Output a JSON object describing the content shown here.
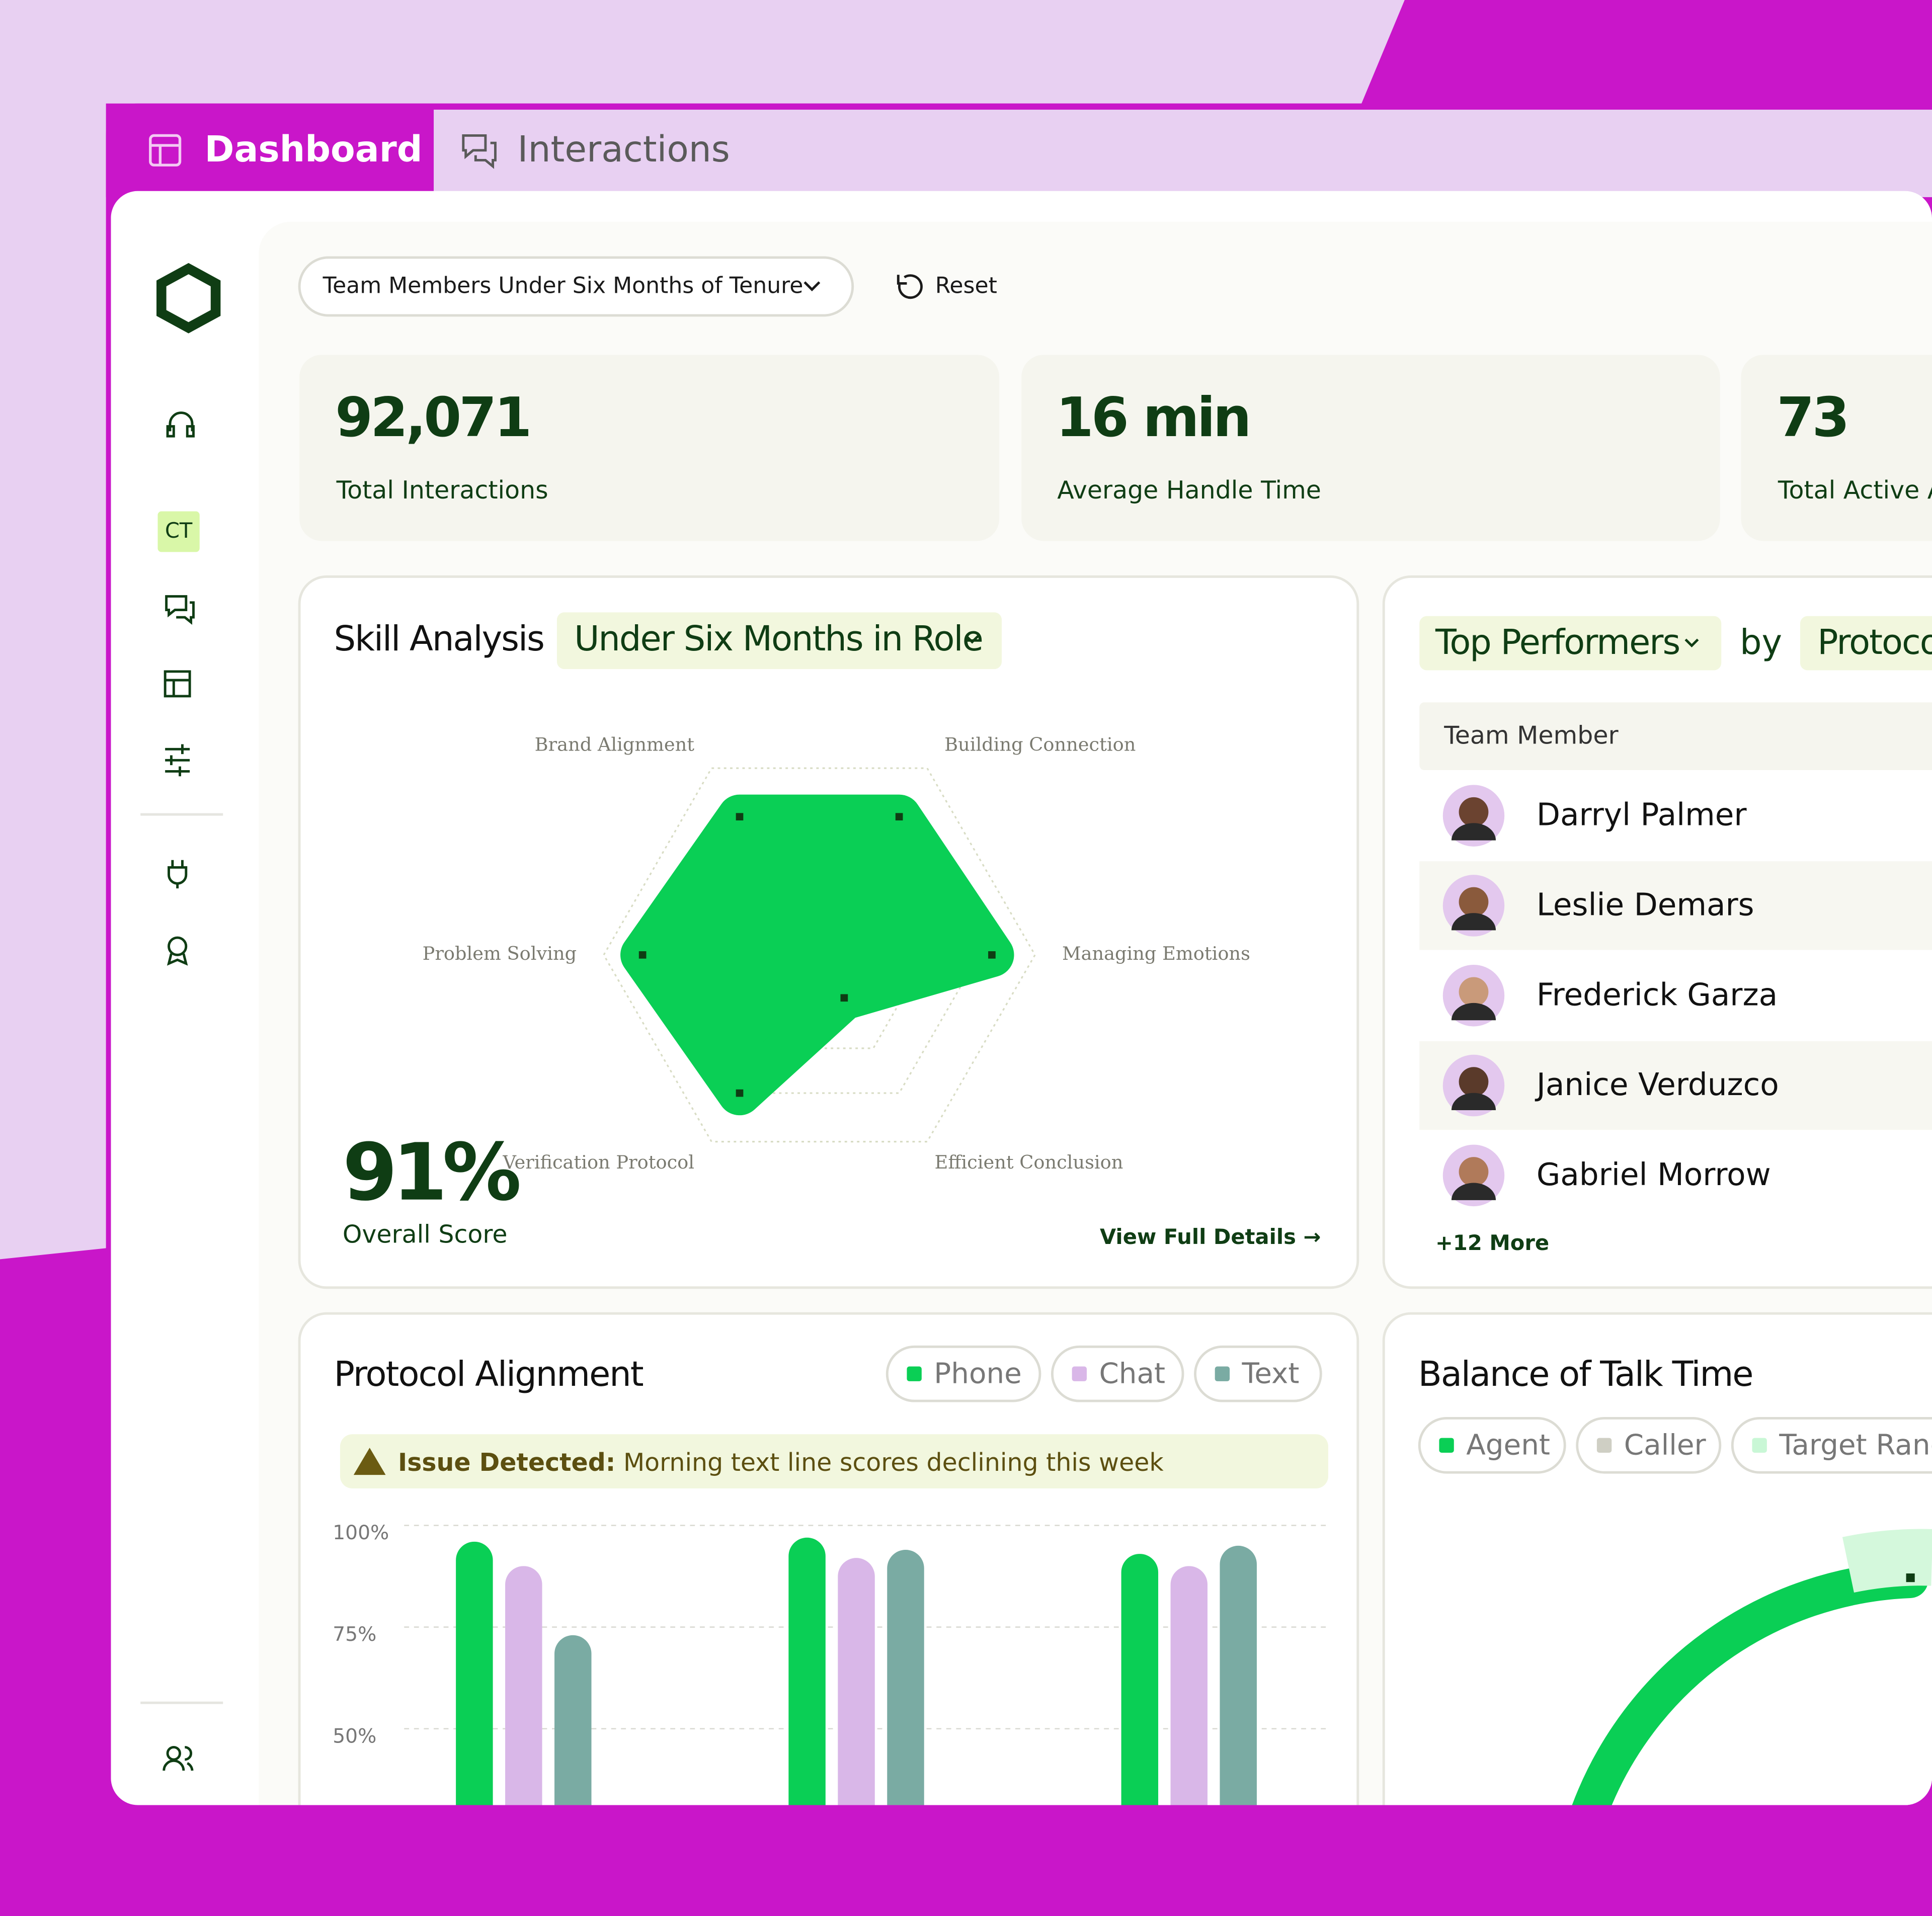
{
  "tabs": [
    "Dashboard",
    "Interactions"
  ],
  "sidebar": {
    "badge": "CT"
  },
  "filter": {
    "label": "Team Members Under Six Months of Tenure",
    "reset": "Reset"
  },
  "kpis": [
    {
      "value": "92,071",
      "label": "Total Interactions"
    },
    {
      "value": "16 min",
      "label": "Average Handle Time"
    },
    {
      "value": "73",
      "label": "Total Active A"
    }
  ],
  "skill_analysis": {
    "title": "Skill Analysis",
    "filter": "Under Six Months in Role",
    "score": "91%",
    "score_label": "Overall Score",
    "link": "View Full Details →",
    "chart_data": {
      "type": "radar",
      "categories": [
        "Managing Emotions",
        "Efficient Conclusion",
        "Verification Protocol",
        "Problem Solving",
        "Brand Alignment",
        "Building Connection"
      ],
      "values": [
        80,
        23,
        74,
        82,
        74,
        74
      ],
      "rlim": [
        0,
        100
      ],
      "color": "#0acf55"
    }
  },
  "top_performers": {
    "title": "Top Performers",
    "by": "by",
    "metric": "Protoco",
    "column": "Team Member",
    "members": [
      "Darryl Palmer",
      "Leslie Demars",
      "Frederick Garza",
      "Janice Verduzco",
      "Gabriel Morrow"
    ],
    "more": "+12 More"
  },
  "protocol_alignment": {
    "title": "Protocol Alignment",
    "alert_title": "Issue Detected:",
    "alert_text": "Morning text line scores declining this week",
    "chart_data": {
      "type": "bar",
      "categories": [
        null,
        null,
        null
      ],
      "series": [
        {
          "name": "Phone",
          "color": "#0acf55",
          "values": [
            96,
            97,
            93
          ]
        },
        {
          "name": "Chat",
          "color": "#d9b7e8",
          "values": [
            90,
            92,
            90
          ]
        },
        {
          "name": "Text",
          "color": "#7aaba3",
          "values": [
            73,
            94,
            95
          ]
        }
      ],
      "ylim": [
        0,
        100
      ],
      "yticks": [
        {
          "value": 100,
          "label": "100%"
        },
        {
          "value": 75,
          "label": "75%"
        },
        {
          "value": 50,
          "label": "50%"
        }
      ],
      "grid": true
    }
  },
  "balance": {
    "title": "Balance of Talk Time",
    "legend": [
      "Agent",
      "Caller",
      "Target Rang"
    ]
  }
}
